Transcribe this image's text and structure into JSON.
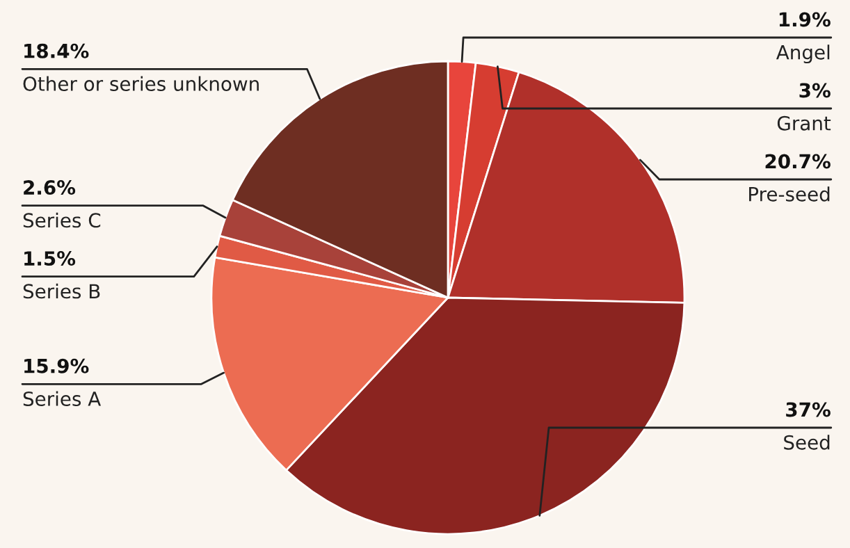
{
  "chart_data": {
    "type": "pie",
    "categories": [
      "Angel",
      "Grant",
      "Pre-seed",
      "Seed",
      "Series A",
      "Series B",
      "Series C",
      "Other or series unknown"
    ],
    "values": [
      1.9,
      3,
      20.7,
      37,
      15.9,
      1.5,
      2.6,
      18.4
    ],
    "value_labels": [
      "1.9%",
      "3%",
      "20.7%",
      "37%",
      "15.9%",
      "1.5%",
      "2.6%",
      "18.4%"
    ],
    "colors": [
      "#e8453c",
      "#d63d31",
      "#b0302a",
      "#8b2420",
      "#ec6c52",
      "#e05a45",
      "#a8423a",
      "#6e2e22"
    ],
    "legend": false
  }
}
